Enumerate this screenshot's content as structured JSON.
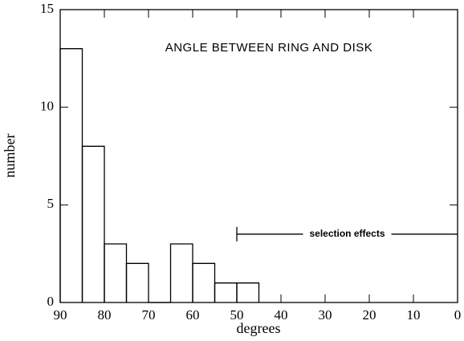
{
  "chart_data": {
    "type": "histogram",
    "title": "ANGLE BETWEEN RING AND DISK",
    "x_label": "degrees",
    "y_label": "number",
    "bins": [
      90,
      85,
      80,
      75,
      70,
      65,
      60,
      55,
      50,
      45
    ],
    "values": [
      13,
      8,
      3,
      2,
      0,
      3,
      2,
      1,
      1
    ],
    "color": "#000000",
    "xlim": [
      90,
      0
    ],
    "xticks": [
      90,
      80,
      70,
      60,
      50,
      40,
      30,
      20,
      10,
      0
    ],
    "ylim": [
      0,
      15
    ],
    "yticks": [
      0,
      5,
      10,
      15
    ],
    "annotation": {
      "text": "selection effects",
      "x": [
        50,
        0
      ],
      "y": 3.5
    }
  }
}
